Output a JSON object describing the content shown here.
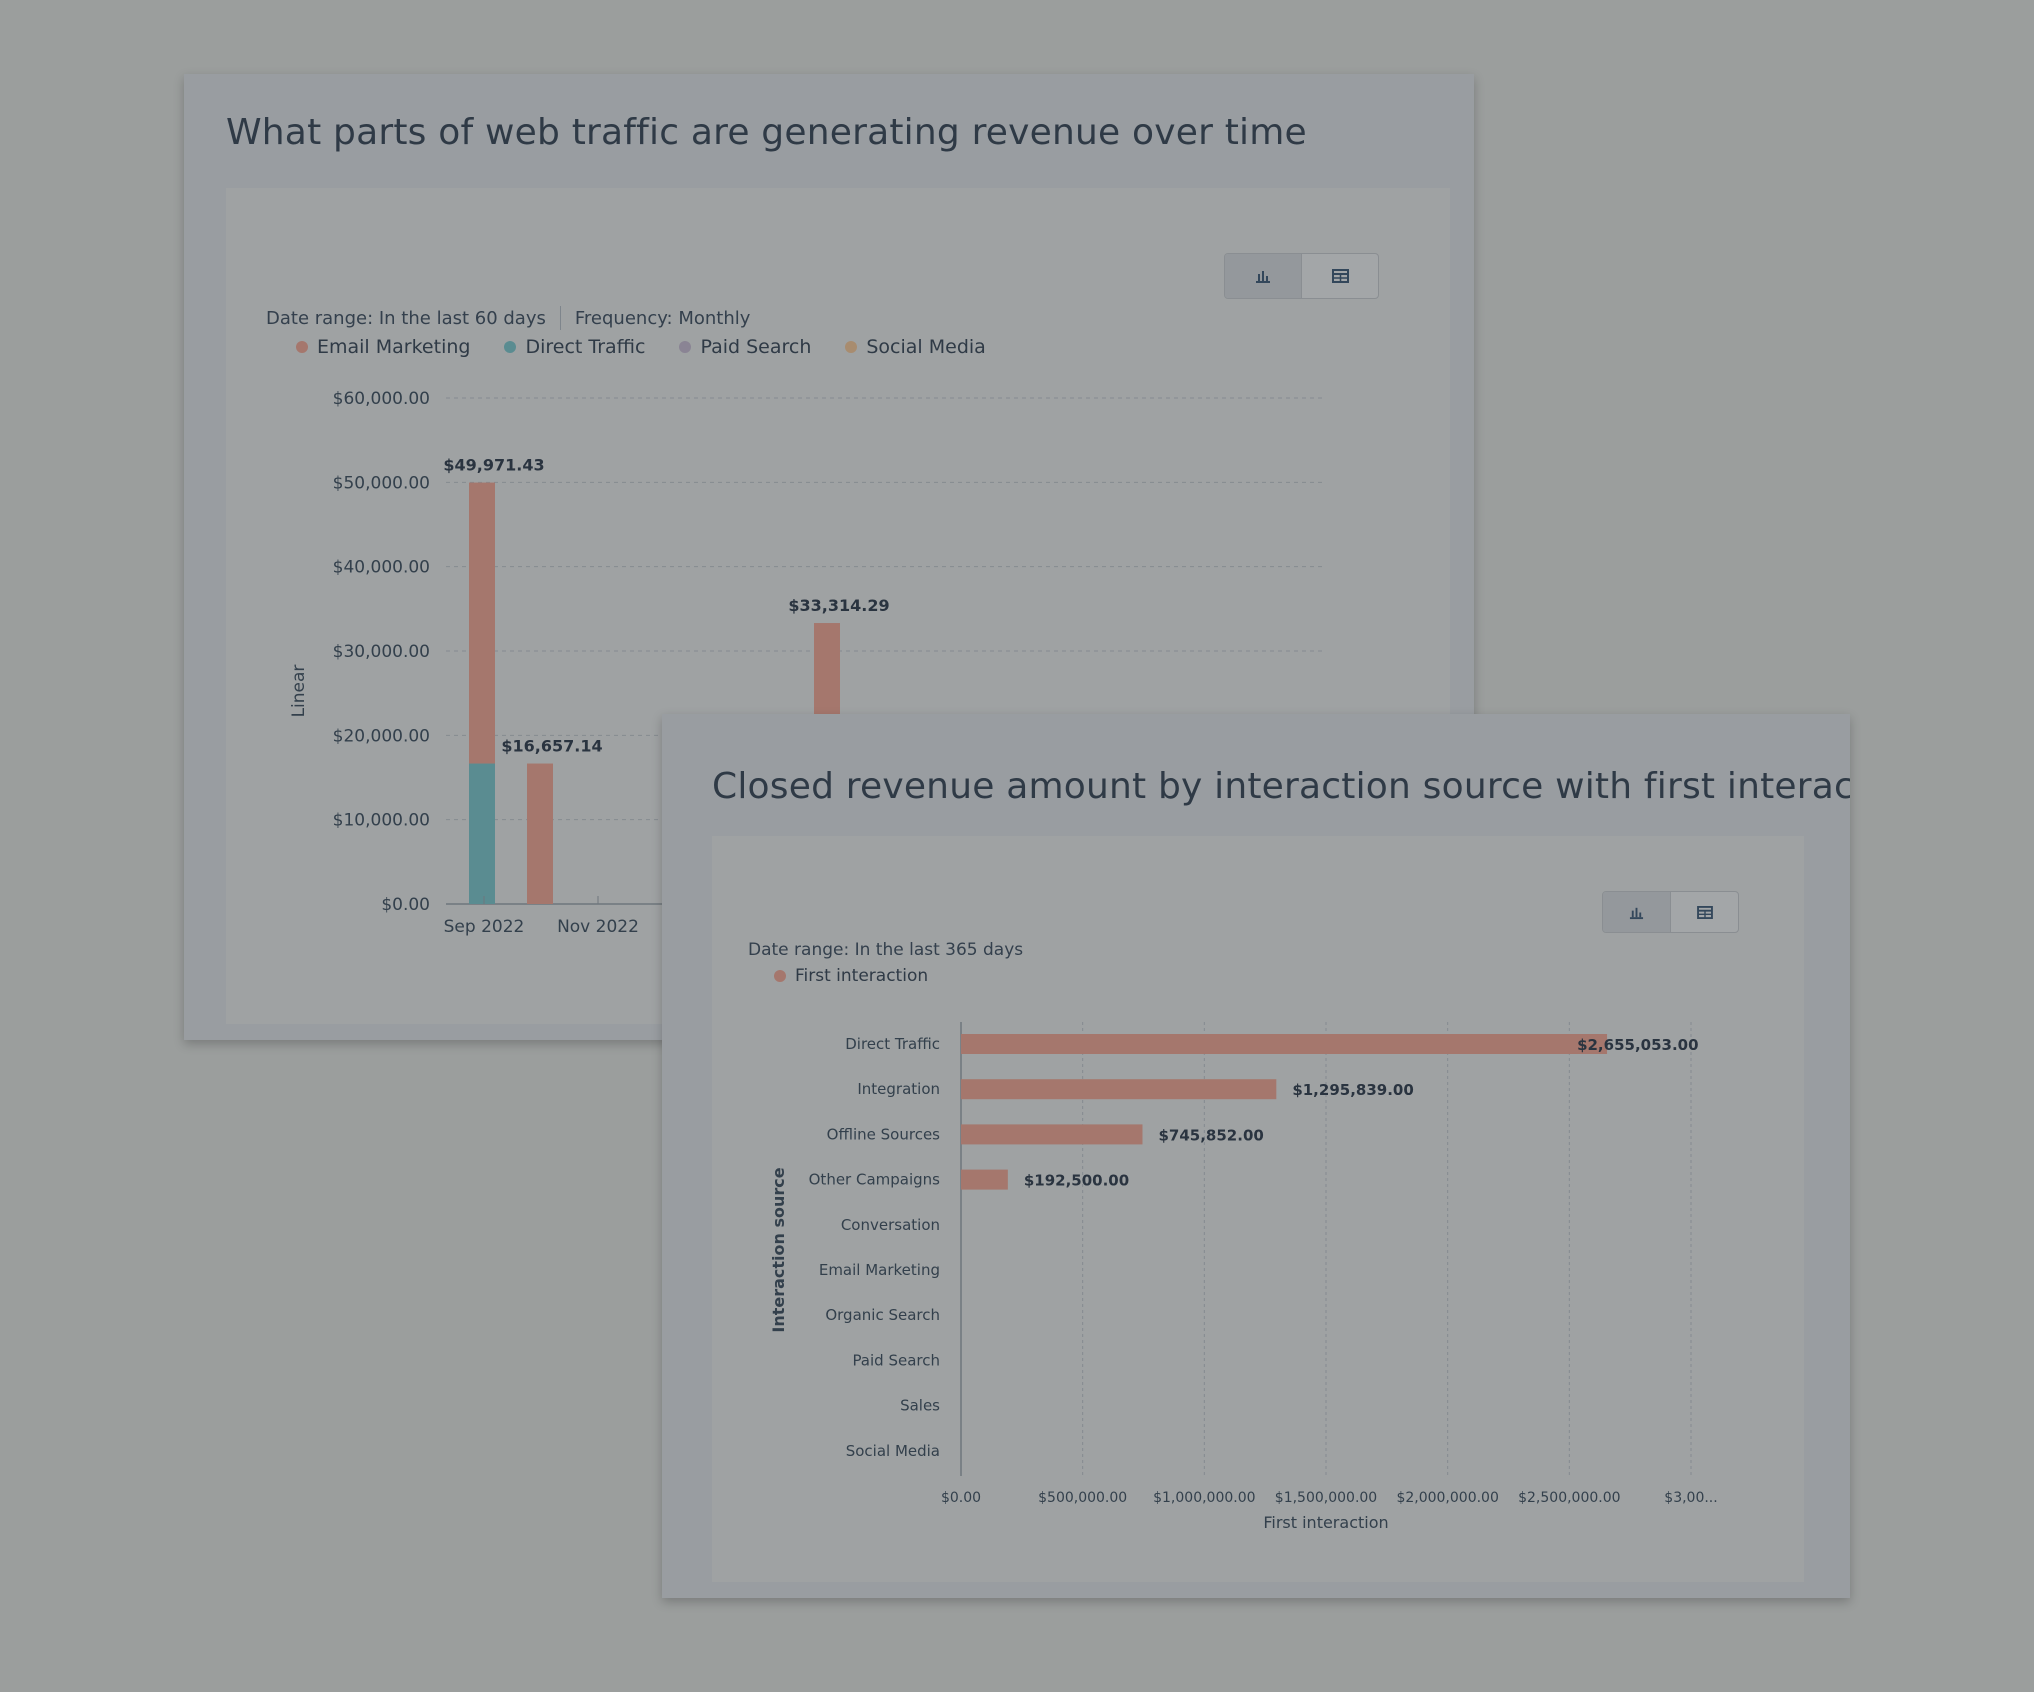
{
  "colors": {
    "email_marketing": "#a5776d",
    "direct_traffic": "#5a8c91",
    "paid_search": "#8a8494",
    "social_media": "#a88c6f",
    "first_interaction": "#a5776d"
  },
  "card1": {
    "title": "What parts of web traffic are generating revenue over time",
    "date_range": "Date range: In the last 60 days",
    "frequency": "Frequency: Monthly",
    "view_toggle": {
      "bar_icon": "bar-chart-icon",
      "table_icon": "table-icon"
    },
    "legend": [
      {
        "label": "Email Marketing",
        "color_key": "email_marketing"
      },
      {
        "label": "Direct Traffic",
        "color_key": "direct_traffic"
      },
      {
        "label": "Paid Search",
        "color_key": "paid_search"
      },
      {
        "label": "Social Media",
        "color_key": "social_media"
      }
    ]
  },
  "card2": {
    "title": "Closed revenue amount by interaction source with first interaction m",
    "date_range": "Date range: In the last 365 days",
    "view_toggle": {
      "bar_icon": "bar-chart-icon",
      "table_icon": "table-icon"
    },
    "legend": [
      {
        "label": "First interaction",
        "color_key": "first_interaction"
      }
    ]
  },
  "chart_data": [
    {
      "type": "bar",
      "stacked": true,
      "ylabel": "Linear",
      "ylim": [
        0,
        60000
      ],
      "yticks": [
        "$0.00",
        "$10,000.00",
        "$20,000.00",
        "$30,000.00",
        "$40,000.00",
        "$50,000.00",
        "$60,000.00"
      ],
      "ytick_values": [
        0,
        10000,
        20000,
        30000,
        40000,
        50000,
        60000
      ],
      "x_tick_labels": [
        "Sep 2022",
        "Nov 2022"
      ],
      "grid": true,
      "legend_position": "top-left",
      "bars": [
        {
          "label": "$49,971.43",
          "total": 49971.43,
          "segments": [
            {
              "series": "Direct Traffic",
              "value": 16657.14
            },
            {
              "series": "Email Marketing",
              "value": 33314.29
            }
          ]
        },
        {
          "label": "$16,657.14",
          "total": 16657.14,
          "segments": [
            {
              "series": "Email Marketing",
              "value": 16657.14
            }
          ]
        },
        {
          "label": "$33,314.29",
          "total": 33314.29,
          "segments": [
            {
              "series": "Email Marketing",
              "value": 33314.29
            }
          ]
        }
      ]
    },
    {
      "type": "bar",
      "orientation": "horizontal",
      "ylabel": "Interaction source",
      "xlabel": "First interaction",
      "xlim": [
        0,
        3000000
      ],
      "xticks": [
        "$0.00",
        "$500,000.00",
        "$1,000,000.00",
        "$1,500,000.00",
        "$2,000,000.00",
        "$2,500,000.00",
        "$3,00..."
      ],
      "xtick_values": [
        0,
        500000,
        1000000,
        1500000,
        2000000,
        2500000,
        3000000
      ],
      "grid": true,
      "legend_position": "top-left",
      "categories": [
        "Direct Traffic",
        "Integration",
        "Offline Sources",
        "Other Campaigns",
        "Conversation",
        "Email Marketing",
        "Organic Search",
        "Paid Search",
        "Sales",
        "Social Media"
      ],
      "values": [
        2655053,
        1295839,
        745852,
        192500,
        0,
        0,
        0,
        0,
        0,
        0
      ],
      "labels": [
        "$2,655,053.00",
        "$1,295,839.00",
        "$745,852.00",
        "$192,500.00",
        "",
        "",
        "",
        "",
        "",
        ""
      ]
    }
  ]
}
